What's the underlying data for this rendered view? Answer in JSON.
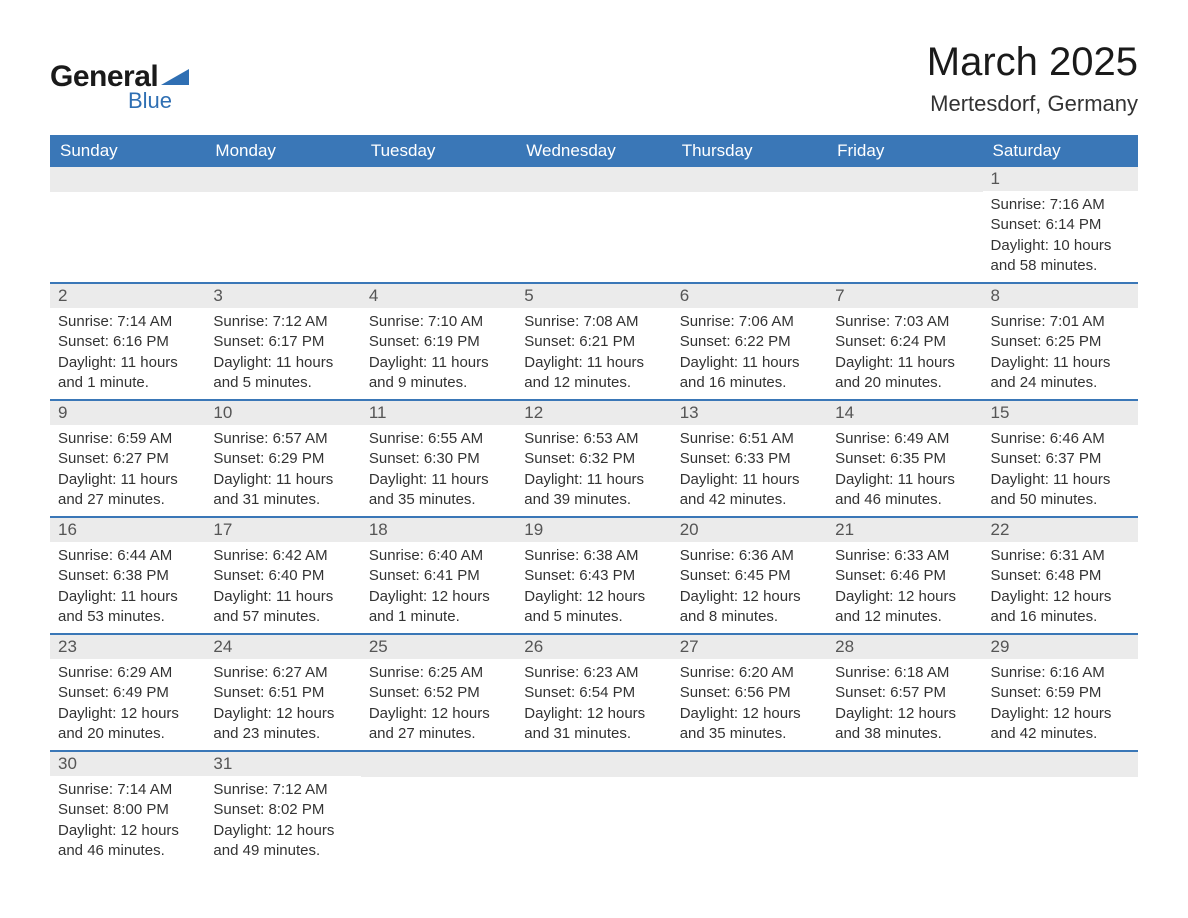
{
  "logo": {
    "text_general": "General",
    "text_blue": "Blue",
    "shape_color": "#2f6fb3"
  },
  "header": {
    "month_title": "March 2025",
    "location": "Mertesdorf, Germany"
  },
  "colors": {
    "header_bg": "#3a77b7",
    "header_text": "#ffffff",
    "daynum_bg": "#ebebeb",
    "daynum_text": "#555555",
    "body_text": "#333333",
    "row_border": "#3a77b7",
    "page_bg": "#ffffff"
  },
  "typography": {
    "month_title_fontsize": 40,
    "location_fontsize": 22,
    "day_header_fontsize": 17,
    "day_number_fontsize": 17,
    "day_content_fontsize": 15,
    "font_family": "Arial"
  },
  "day_headers": [
    "Sunday",
    "Monday",
    "Tuesday",
    "Wednesday",
    "Thursday",
    "Friday",
    "Saturday"
  ],
  "weeks": [
    [
      {
        "num": "",
        "lines": []
      },
      {
        "num": "",
        "lines": []
      },
      {
        "num": "",
        "lines": []
      },
      {
        "num": "",
        "lines": []
      },
      {
        "num": "",
        "lines": []
      },
      {
        "num": "",
        "lines": []
      },
      {
        "num": "1",
        "lines": [
          "Sunrise: 7:16 AM",
          "Sunset: 6:14 PM",
          "Daylight: 10 hours and 58 minutes."
        ]
      }
    ],
    [
      {
        "num": "2",
        "lines": [
          "Sunrise: 7:14 AM",
          "Sunset: 6:16 PM",
          "Daylight: 11 hours and 1 minute."
        ]
      },
      {
        "num": "3",
        "lines": [
          "Sunrise: 7:12 AM",
          "Sunset: 6:17 PM",
          "Daylight: 11 hours and 5 minutes."
        ]
      },
      {
        "num": "4",
        "lines": [
          "Sunrise: 7:10 AM",
          "Sunset: 6:19 PM",
          "Daylight: 11 hours and 9 minutes."
        ]
      },
      {
        "num": "5",
        "lines": [
          "Sunrise: 7:08 AM",
          "Sunset: 6:21 PM",
          "Daylight: 11 hours and 12 minutes."
        ]
      },
      {
        "num": "6",
        "lines": [
          "Sunrise: 7:06 AM",
          "Sunset: 6:22 PM",
          "Daylight: 11 hours and 16 minutes."
        ]
      },
      {
        "num": "7",
        "lines": [
          "Sunrise: 7:03 AM",
          "Sunset: 6:24 PM",
          "Daylight: 11 hours and 20 minutes."
        ]
      },
      {
        "num": "8",
        "lines": [
          "Sunrise: 7:01 AM",
          "Sunset: 6:25 PM",
          "Daylight: 11 hours and 24 minutes."
        ]
      }
    ],
    [
      {
        "num": "9",
        "lines": [
          "Sunrise: 6:59 AM",
          "Sunset: 6:27 PM",
          "Daylight: 11 hours and 27 minutes."
        ]
      },
      {
        "num": "10",
        "lines": [
          "Sunrise: 6:57 AM",
          "Sunset: 6:29 PM",
          "Daylight: 11 hours and 31 minutes."
        ]
      },
      {
        "num": "11",
        "lines": [
          "Sunrise: 6:55 AM",
          "Sunset: 6:30 PM",
          "Daylight: 11 hours and 35 minutes."
        ]
      },
      {
        "num": "12",
        "lines": [
          "Sunrise: 6:53 AM",
          "Sunset: 6:32 PM",
          "Daylight: 11 hours and 39 minutes."
        ]
      },
      {
        "num": "13",
        "lines": [
          "Sunrise: 6:51 AM",
          "Sunset: 6:33 PM",
          "Daylight: 11 hours and 42 minutes."
        ]
      },
      {
        "num": "14",
        "lines": [
          "Sunrise: 6:49 AM",
          "Sunset: 6:35 PM",
          "Daylight: 11 hours and 46 minutes."
        ]
      },
      {
        "num": "15",
        "lines": [
          "Sunrise: 6:46 AM",
          "Sunset: 6:37 PM",
          "Daylight: 11 hours and 50 minutes."
        ]
      }
    ],
    [
      {
        "num": "16",
        "lines": [
          "Sunrise: 6:44 AM",
          "Sunset: 6:38 PM",
          "Daylight: 11 hours and 53 minutes."
        ]
      },
      {
        "num": "17",
        "lines": [
          "Sunrise: 6:42 AM",
          "Sunset: 6:40 PM",
          "Daylight: 11 hours and 57 minutes."
        ]
      },
      {
        "num": "18",
        "lines": [
          "Sunrise: 6:40 AM",
          "Sunset: 6:41 PM",
          "Daylight: 12 hours and 1 minute."
        ]
      },
      {
        "num": "19",
        "lines": [
          "Sunrise: 6:38 AM",
          "Sunset: 6:43 PM",
          "Daylight: 12 hours and 5 minutes."
        ]
      },
      {
        "num": "20",
        "lines": [
          "Sunrise: 6:36 AM",
          "Sunset: 6:45 PM",
          "Daylight: 12 hours and 8 minutes."
        ]
      },
      {
        "num": "21",
        "lines": [
          "Sunrise: 6:33 AM",
          "Sunset: 6:46 PM",
          "Daylight: 12 hours and 12 minutes."
        ]
      },
      {
        "num": "22",
        "lines": [
          "Sunrise: 6:31 AM",
          "Sunset: 6:48 PM",
          "Daylight: 12 hours and 16 minutes."
        ]
      }
    ],
    [
      {
        "num": "23",
        "lines": [
          "Sunrise: 6:29 AM",
          "Sunset: 6:49 PM",
          "Daylight: 12 hours and 20 minutes."
        ]
      },
      {
        "num": "24",
        "lines": [
          "Sunrise: 6:27 AM",
          "Sunset: 6:51 PM",
          "Daylight: 12 hours and 23 minutes."
        ]
      },
      {
        "num": "25",
        "lines": [
          "Sunrise: 6:25 AM",
          "Sunset: 6:52 PM",
          "Daylight: 12 hours and 27 minutes."
        ]
      },
      {
        "num": "26",
        "lines": [
          "Sunrise: 6:23 AM",
          "Sunset: 6:54 PM",
          "Daylight: 12 hours and 31 minutes."
        ]
      },
      {
        "num": "27",
        "lines": [
          "Sunrise: 6:20 AM",
          "Sunset: 6:56 PM",
          "Daylight: 12 hours and 35 minutes."
        ]
      },
      {
        "num": "28",
        "lines": [
          "Sunrise: 6:18 AM",
          "Sunset: 6:57 PM",
          "Daylight: 12 hours and 38 minutes."
        ]
      },
      {
        "num": "29",
        "lines": [
          "Sunrise: 6:16 AM",
          "Sunset: 6:59 PM",
          "Daylight: 12 hours and 42 minutes."
        ]
      }
    ],
    [
      {
        "num": "30",
        "lines": [
          "Sunrise: 7:14 AM",
          "Sunset: 8:00 PM",
          "Daylight: 12 hours and 46 minutes."
        ]
      },
      {
        "num": "31",
        "lines": [
          "Sunrise: 7:12 AM",
          "Sunset: 8:02 PM",
          "Daylight: 12 hours and 49 minutes."
        ]
      },
      {
        "num": "",
        "lines": []
      },
      {
        "num": "",
        "lines": []
      },
      {
        "num": "",
        "lines": []
      },
      {
        "num": "",
        "lines": []
      },
      {
        "num": "",
        "lines": []
      }
    ]
  ]
}
